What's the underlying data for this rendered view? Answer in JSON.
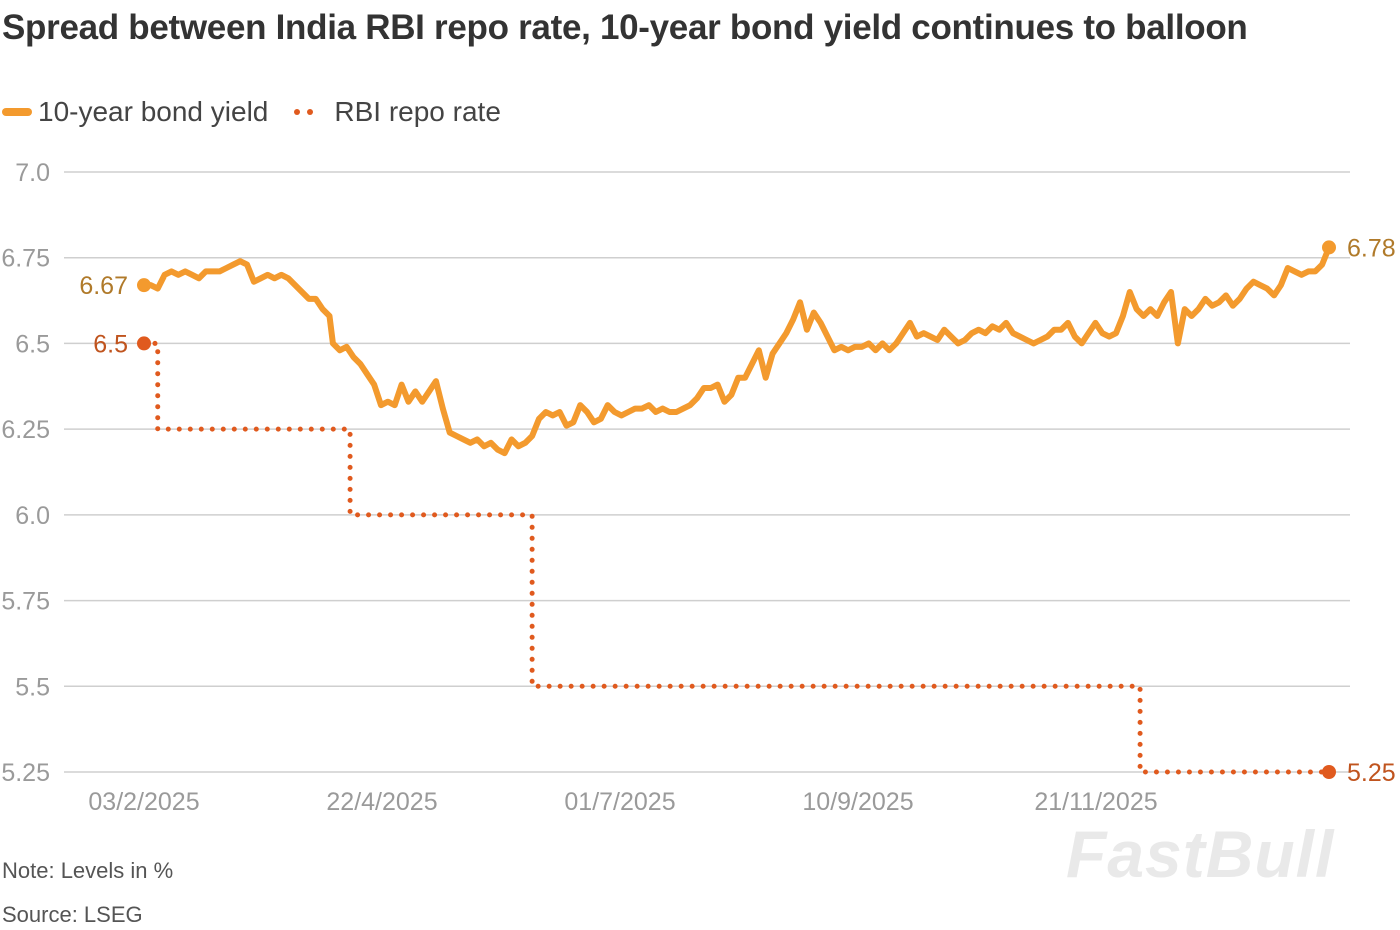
{
  "chart_data": {
    "type": "line",
    "title": "Spread between India RBI repo rate, 10-year bond yield continues to balloon",
    "x_tick_labels": [
      "03/2/2025",
      "22/4/2025",
      "01/7/2025",
      "10/9/2025",
      "21/11/2025"
    ],
    "y_tick_labels": [
      "7.0",
      "6.75",
      "6.5",
      "6.25",
      "6.0",
      "5.75",
      "5.5",
      "5.25"
    ],
    "ylim": [
      5.25,
      7.0
    ],
    "x_range_days": [
      0,
      345
    ],
    "series": [
      {
        "name": "10-year bond yield",
        "color": "#f39a2e",
        "style": "solid",
        "start_label": "6.67",
        "end_label": "6.78",
        "points": [
          [
            0,
            6.67
          ],
          [
            2,
            6.67
          ],
          [
            4,
            6.66
          ],
          [
            6,
            6.7
          ],
          [
            8,
            6.71
          ],
          [
            10,
            6.7
          ],
          [
            12,
            6.71
          ],
          [
            14,
            6.7
          ],
          [
            16,
            6.69
          ],
          [
            18,
            6.71
          ],
          [
            20,
            6.71
          ],
          [
            22,
            6.71
          ],
          [
            24,
            6.72
          ],
          [
            26,
            6.73
          ],
          [
            28,
            6.74
          ],
          [
            30,
            6.73
          ],
          [
            32,
            6.68
          ],
          [
            34,
            6.69
          ],
          [
            36,
            6.7
          ],
          [
            38,
            6.69
          ],
          [
            40,
            6.7
          ],
          [
            42,
            6.69
          ],
          [
            44,
            6.67
          ],
          [
            46,
            6.65
          ],
          [
            48,
            6.63
          ],
          [
            50,
            6.63
          ],
          [
            52,
            6.6
          ],
          [
            54,
            6.58
          ],
          [
            55,
            6.5
          ],
          [
            57,
            6.48
          ],
          [
            59,
            6.49
          ],
          [
            61,
            6.46
          ],
          [
            63,
            6.44
          ],
          [
            65,
            6.41
          ],
          [
            67,
            6.38
          ],
          [
            69,
            6.32
          ],
          [
            71,
            6.33
          ],
          [
            73,
            6.32
          ],
          [
            75,
            6.38
          ],
          [
            77,
            6.33
          ],
          [
            79,
            6.36
          ],
          [
            81,
            6.33
          ],
          [
            83,
            6.36
          ],
          [
            85,
            6.39
          ],
          [
            87,
            6.31
          ],
          [
            89,
            6.24
          ],
          [
            91,
            6.23
          ],
          [
            93,
            6.22
          ],
          [
            95,
            6.21
          ],
          [
            97,
            6.22
          ],
          [
            99,
            6.2
          ],
          [
            101,
            6.21
          ],
          [
            103,
            6.19
          ],
          [
            105,
            6.18
          ],
          [
            107,
            6.22
          ],
          [
            109,
            6.2
          ],
          [
            111,
            6.21
          ],
          [
            113,
            6.23
          ],
          [
            115,
            6.28
          ],
          [
            117,
            6.3
          ],
          [
            119,
            6.29
          ],
          [
            121,
            6.3
          ],
          [
            123,
            6.26
          ],
          [
            125,
            6.27
          ],
          [
            127,
            6.32
          ],
          [
            129,
            6.3
          ],
          [
            131,
            6.27
          ],
          [
            133,
            6.28
          ],
          [
            135,
            6.32
          ],
          [
            137,
            6.3
          ],
          [
            139,
            6.29
          ],
          [
            141,
            6.3
          ],
          [
            143,
            6.31
          ],
          [
            145,
            6.31
          ],
          [
            147,
            6.32
          ],
          [
            149,
            6.3
          ],
          [
            151,
            6.31
          ],
          [
            153,
            6.3
          ],
          [
            155,
            6.3
          ],
          [
            157,
            6.31
          ],
          [
            159,
            6.32
          ],
          [
            161,
            6.34
          ],
          [
            163,
            6.37
          ],
          [
            165,
            6.37
          ],
          [
            167,
            6.38
          ],
          [
            169,
            6.33
          ],
          [
            171,
            6.35
          ],
          [
            173,
            6.4
          ],
          [
            175,
            6.4
          ],
          [
            177,
            6.44
          ],
          [
            179,
            6.48
          ],
          [
            181,
            6.4
          ],
          [
            183,
            6.47
          ],
          [
            185,
            6.5
          ],
          [
            187,
            6.53
          ],
          [
            189,
            6.57
          ],
          [
            191,
            6.62
          ],
          [
            193,
            6.54
          ],
          [
            195,
            6.59
          ],
          [
            197,
            6.56
          ],
          [
            199,
            6.52
          ],
          [
            201,
            6.48
          ],
          [
            203,
            6.49
          ],
          [
            205,
            6.48
          ],
          [
            207,
            6.49
          ],
          [
            209,
            6.49
          ],
          [
            211,
            6.5
          ],
          [
            213,
            6.48
          ],
          [
            215,
            6.5
          ],
          [
            217,
            6.48
          ],
          [
            219,
            6.5
          ],
          [
            221,
            6.53
          ],
          [
            223,
            6.56
          ],
          [
            225,
            6.52
          ],
          [
            227,
            6.53
          ],
          [
            229,
            6.52
          ],
          [
            231,
            6.51
          ],
          [
            233,
            6.54
          ],
          [
            235,
            6.52
          ],
          [
            237,
            6.5
          ],
          [
            239,
            6.51
          ],
          [
            241,
            6.53
          ],
          [
            243,
            6.54
          ],
          [
            245,
            6.53
          ],
          [
            247,
            6.55
          ],
          [
            249,
            6.54
          ],
          [
            251,
            6.56
          ],
          [
            253,
            6.53
          ],
          [
            255,
            6.52
          ],
          [
            257,
            6.51
          ],
          [
            259,
            6.5
          ],
          [
            261,
            6.51
          ],
          [
            263,
            6.52
          ],
          [
            265,
            6.54
          ],
          [
            267,
            6.54
          ],
          [
            269,
            6.56
          ],
          [
            271,
            6.52
          ],
          [
            273,
            6.5
          ],
          [
            275,
            6.53
          ],
          [
            277,
            6.56
          ],
          [
            279,
            6.53
          ],
          [
            281,
            6.52
          ],
          [
            283,
            6.53
          ],
          [
            285,
            6.58
          ],
          [
            287,
            6.65
          ],
          [
            289,
            6.6
          ],
          [
            291,
            6.58
          ],
          [
            293,
            6.6
          ],
          [
            295,
            6.58
          ],
          [
            297,
            6.62
          ],
          [
            299,
            6.65
          ],
          [
            301,
            6.5
          ],
          [
            303,
            6.6
          ],
          [
            305,
            6.58
          ],
          [
            307,
            6.6
          ],
          [
            309,
            6.63
          ],
          [
            311,
            6.61
          ],
          [
            313,
            6.62
          ],
          [
            315,
            6.64
          ],
          [
            317,
            6.61
          ],
          [
            319,
            6.63
          ],
          [
            321,
            6.66
          ],
          [
            323,
            6.68
          ],
          [
            325,
            6.67
          ],
          [
            327,
            6.66
          ],
          [
            329,
            6.64
          ],
          [
            331,
            6.67
          ],
          [
            333,
            6.72
          ],
          [
            335,
            6.71
          ],
          [
            337,
            6.7
          ],
          [
            339,
            6.71
          ],
          [
            341,
            6.71
          ],
          [
            343,
            6.73
          ],
          [
            345,
            6.78
          ]
        ]
      },
      {
        "name": "RBI repo rate",
        "color": "#e05a1e",
        "style": "dotted",
        "start_label": "6.5",
        "end_label": "5.25",
        "points": [
          [
            0,
            6.5
          ],
          [
            4,
            6.5
          ],
          [
            4,
            6.25
          ],
          [
            60,
            6.25
          ],
          [
            60,
            6.0
          ],
          [
            113,
            6.0
          ],
          [
            113,
            5.5
          ],
          [
            290,
            5.5
          ],
          [
            290,
            5.25
          ],
          [
            345,
            5.25
          ]
        ]
      }
    ],
    "notes": [
      "Note: Levels in %",
      "Source: LSEG"
    ],
    "watermark": "FastBull"
  }
}
